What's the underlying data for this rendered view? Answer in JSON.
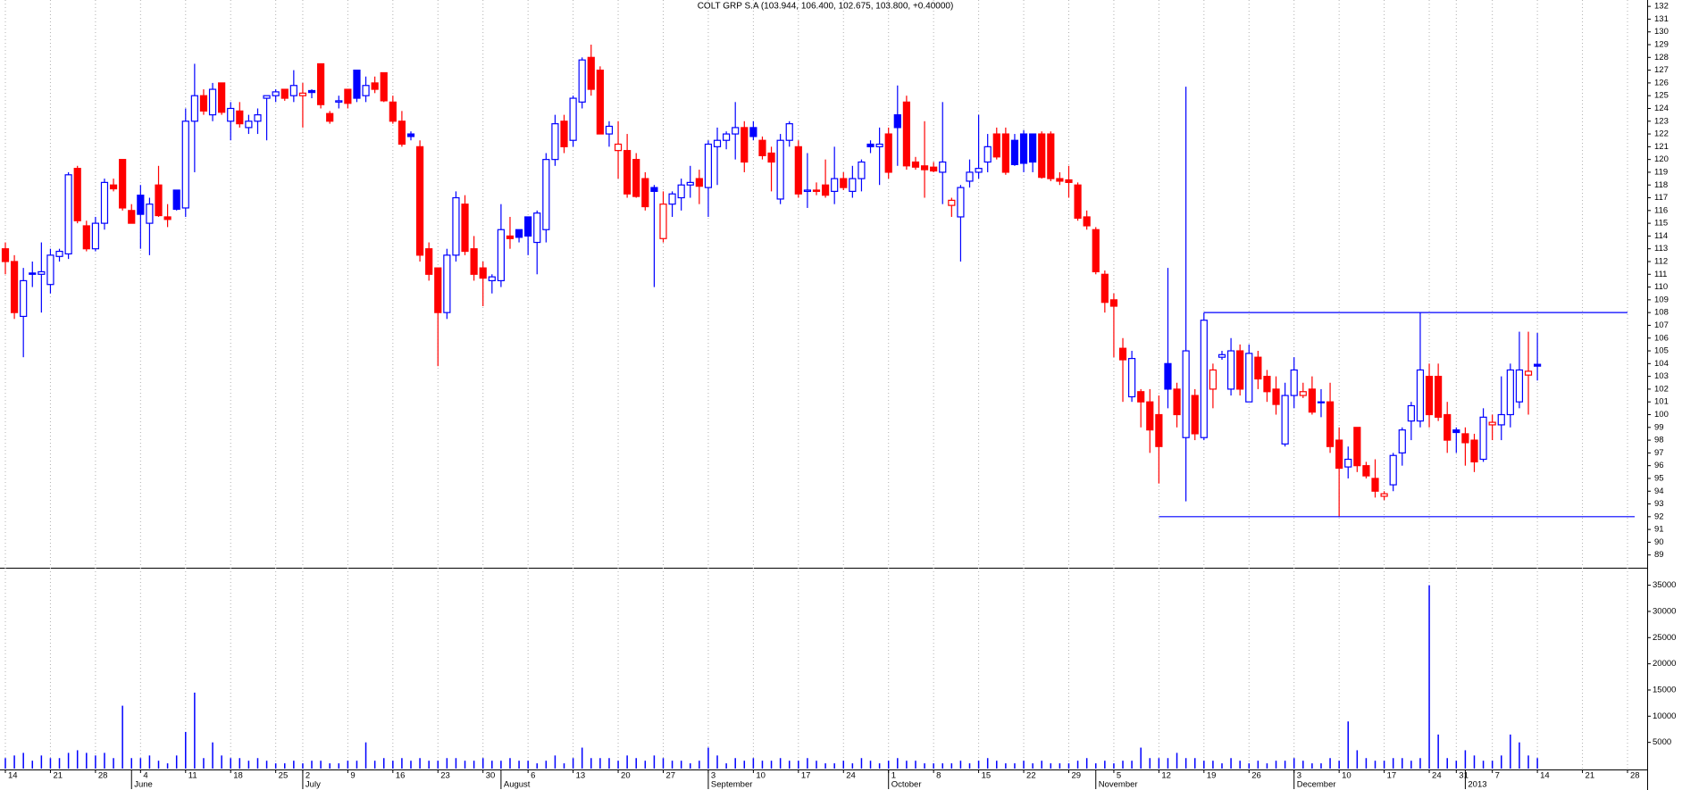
{
  "chart_data": {
    "type": "candlestick",
    "title": "COLT GRP S.A (103.944, 106.400, 102.675, 103.800, +0.40000)",
    "up_color": "#0000ff",
    "down_color": "#ff0000",
    "volume_color": "#0000ff",
    "hline_color": "#0000ff",
    "grid": true,
    "categories": [
      "14",
      null,
      null,
      null,
      null,
      "21",
      null,
      null,
      null,
      null,
      "28",
      null,
      null,
      null,
      null,
      "4",
      null,
      null,
      null,
      null,
      "11",
      null,
      null,
      null,
      null,
      "18",
      null,
      null,
      null,
      null,
      "25",
      null,
      null,
      "2",
      null,
      null,
      null,
      null,
      "9",
      null,
      null,
      null,
      null,
      "16",
      null,
      null,
      null,
      null,
      "23",
      null,
      null,
      null,
      null,
      "30",
      null,
      null,
      null,
      null,
      "6",
      null,
      null,
      null,
      null,
      "13",
      null,
      null,
      null,
      null,
      "20",
      null,
      null,
      null,
      null,
      "27",
      null,
      null,
      null,
      null,
      "3",
      null,
      null,
      null,
      null,
      "10",
      null,
      null,
      null,
      null,
      "17",
      null,
      null,
      null,
      null,
      "24",
      null,
      null,
      null,
      null,
      "1",
      null,
      null,
      null,
      null,
      "8",
      null,
      null,
      null,
      null,
      "15",
      null,
      null,
      null,
      null,
      "22",
      null,
      null,
      null,
      null,
      "29",
      null,
      null,
      null,
      null,
      "5",
      null,
      null,
      null,
      null,
      "12",
      null,
      null,
      null,
      null,
      "19",
      null,
      null,
      null,
      null,
      "26",
      null,
      null,
      null,
      null,
      "3",
      null,
      null,
      null,
      null,
      "10",
      null,
      null,
      null,
      null,
      "17",
      null,
      null,
      null,
      null,
      "24",
      null,
      null,
      "31",
      null,
      null,
      null,
      "7",
      null,
      null,
      null,
      null,
      "14",
      null,
      null,
      null,
      null,
      "21",
      null,
      null,
      null,
      null,
      "28"
    ],
    "months": [
      null,
      null,
      null,
      null,
      null,
      null,
      null,
      null,
      null,
      null,
      null,
      null,
      null,
      null,
      "June",
      null,
      null,
      null,
      null,
      null,
      null,
      null,
      null,
      null,
      null,
      null,
      null,
      null,
      null,
      null,
      null,
      null,
      null,
      "July",
      null,
      null,
      null,
      null,
      null,
      null,
      null,
      null,
      null,
      null,
      null,
      null,
      null,
      null,
      null,
      null,
      null,
      null,
      null,
      null,
      null,
      "August",
      null,
      null,
      null,
      null,
      null,
      null,
      null,
      null,
      null,
      null,
      null,
      null,
      null,
      null,
      null,
      null,
      null,
      null,
      null,
      null,
      null,
      null,
      "September",
      null,
      null,
      null,
      null,
      null,
      null,
      null,
      null,
      null,
      null,
      null,
      null,
      null,
      null,
      null,
      null,
      null,
      null,
      null,
      "October",
      null,
      null,
      null,
      null,
      null,
      null,
      null,
      null,
      null,
      null,
      null,
      null,
      null,
      null,
      null,
      null,
      null,
      null,
      null,
      null,
      null,
      null,
      "November",
      null,
      null,
      null,
      null,
      null,
      null,
      null,
      null,
      null,
      null,
      null,
      null,
      null,
      null,
      null,
      null,
      null,
      null,
      null,
      null,
      null,
      "December",
      null,
      null,
      null,
      null,
      null,
      null,
      null,
      null,
      null,
      null,
      null,
      null,
      null,
      null,
      null,
      null,
      null,
      null,
      "2013",
      null,
      null,
      null,
      null,
      null,
      null,
      null,
      null,
      null,
      null,
      null,
      null,
      null,
      null,
      null,
      null,
      null,
      null
    ],
    "open": [
      113,
      112,
      107.7,
      111.1,
      111,
      110.2,
      112.4,
      112.6,
      119.3,
      114.8,
      113,
      115,
      118,
      120,
      116,
      117.2,
      115,
      118,
      115.5,
      117.6,
      116.2,
      123,
      125,
      123.5,
      126,
      123,
      123.8,
      122.5,
      123,
      124.8,
      125,
      125.5,
      125,
      125,
      125.4,
      127.5,
      123.6,
      124.5,
      125.5,
      127,
      125,
      126,
      126.8,
      124.5,
      123,
      122,
      121,
      113,
      111.5,
      108,
      112.5,
      116.5,
      113,
      111.5,
      110.5,
      110.5,
      114,
      114.5,
      115.5,
      113.5,
      114.5,
      120,
      123,
      121.5,
      124.5,
      128,
      127,
      122,
      120.7,
      120.7,
      120,
      118.5,
      117.8,
      113.8,
      116.5,
      117,
      118,
      118.5,
      117.8,
      121,
      121.5,
      122,
      122.5,
      122.5,
      121.5,
      120.5,
      116.9,
      121.5,
      121,
      117.5,
      117.6,
      118,
      117.5,
      118.5,
      117.5,
      118.5,
      121.2,
      121,
      122,
      123.5,
      124.5,
      119.8,
      119.5,
      119.4,
      119,
      116.4,
      115.5,
      118.3,
      119,
      119.8,
      122,
      122,
      121.5,
      122,
      122,
      122,
      122,
      118.5,
      118.4,
      118,
      115.5,
      114.5,
      111,
      109,
      105.2,
      101.4,
      101.8,
      101,
      100,
      104,
      102,
      98.2,
      101.5,
      98.2,
      102,
      104.5,
      102,
      105,
      101,
      104.5,
      103,
      102,
      97.7,
      101.5,
      101.5,
      102,
      101,
      101,
      98,
      95.9,
      99,
      96,
      95,
      93.6,
      94.5,
      97,
      99.5,
      99.5,
      103,
      103,
      100,
      98.8,
      98.5,
      98,
      96.5,
      99.2,
      99.2,
      100,
      101,
      103.1,
      103.944,
      null,
      null,
      null,
      null,
      null,
      null,
      null,
      null,
      null,
      null
    ],
    "high": [
      113.5,
      112.5,
      111.5,
      112,
      113.5,
      113,
      113,
      119,
      119.5,
      115.2,
      115.5,
      118.5,
      118.5,
      120,
      116.5,
      118,
      117,
      119.5,
      116.5,
      117.6,
      124,
      127.5,
      125.5,
      126,
      126,
      124.5,
      124.5,
      123.5,
      124,
      125,
      125.5,
      125.5,
      127,
      126,
      125.5,
      127.5,
      123.8,
      125,
      125.5,
      127,
      126.5,
      126.5,
      126.8,
      125,
      123.8,
      122.2,
      121.5,
      113.5,
      111.5,
      113,
      117.5,
      117.2,
      114,
      112,
      111,
      116.5,
      115.5,
      114.5,
      115.5,
      116,
      120.5,
      123.5,
      123.5,
      125,
      128,
      129,
      127.3,
      123,
      123,
      122,
      120.5,
      119,
      118,
      117.5,
      117.5,
      118.5,
      119.5,
      119.2,
      121.5,
      122.5,
      122.2,
      124.5,
      123,
      123,
      121.8,
      121,
      122,
      123,
      121.5,
      120.5,
      118.2,
      120,
      121,
      119,
      119.5,
      120,
      121.5,
      122.5,
      122.5,
      125.8,
      125,
      120.2,
      123,
      119.8,
      124.5,
      117,
      118,
      120,
      123.5,
      122,
      122.5,
      122.5,
      122,
      122.3,
      122,
      122.2,
      122.2,
      119,
      119.5,
      118.2,
      116,
      114.7,
      111.3,
      109.5,
      106,
      105,
      102,
      102,
      101.5,
      111.5,
      102.5,
      125.7,
      102,
      108,
      104,
      105,
      106,
      105.5,
      105.5,
      105,
      103.5,
      103,
      102.5,
      104.5,
      102.5,
      103,
      102,
      102.5,
      99,
      97.5,
      99,
      96.3,
      96.5,
      94,
      97,
      99,
      101,
      108,
      104,
      104,
      101,
      99,
      99,
      98.5,
      100.5,
      100,
      103,
      104,
      106.5,
      106.5,
      106.4,
      null,
      null,
      null,
      null,
      null,
      null,
      null,
      null,
      null,
      null
    ],
    "low": [
      111,
      107.5,
      104.5,
      110,
      108,
      109.5,
      112,
      112.2,
      115,
      112.8,
      112.8,
      114.5,
      117.5,
      116,
      115,
      113,
      112.5,
      115.5,
      114.7,
      116,
      115.5,
      119,
      123.5,
      123,
      123.5,
      121.5,
      122.5,
      122,
      122,
      121.5,
      124.5,
      124.6,
      124.5,
      122.5,
      124.8,
      124,
      122.8,
      124,
      124,
      124.5,
      124.5,
      125.2,
      124.5,
      122.8,
      121,
      121.5,
      112,
      110.5,
      103.8,
      107.5,
      112,
      112.5,
      110.5,
      108.5,
      109.5,
      110,
      113,
      113.5,
      112.5,
      111,
      113.5,
      119.5,
      120.5,
      121,
      124,
      125,
      122,
      121,
      118.5,
      117,
      117,
      116,
      110,
      113.5,
      115.5,
      116,
      117,
      116.5,
      115.5,
      118,
      120.8,
      120,
      119,
      121.5,
      120,
      117.5,
      116.5,
      121,
      117,
      116.2,
      117.2,
      117,
      116.5,
      117.6,
      117,
      117.5,
      120.5,
      118,
      118.5,
      119.5,
      119.2,
      119.2,
      117,
      119,
      116.5,
      115.5,
      112,
      117.8,
      118.5,
      119,
      120,
      118.8,
      119.5,
      119,
      119,
      118.5,
      118.3,
      118,
      117,
      115.2,
      114.5,
      111,
      108,
      104.5,
      101,
      101,
      99,
      97,
      94.6,
      100.5,
      99,
      93.2,
      98,
      98,
      100.5,
      104.3,
      101.5,
      101.5,
      101,
      102,
      101,
      100,
      97.5,
      100.5,
      101.3,
      100,
      99.8,
      97,
      92,
      95,
      95.5,
      95,
      93.5,
      93.3,
      94,
      96,
      98,
      99,
      99,
      99.5,
      97,
      97,
      96,
      95.5,
      96.3,
      98,
      98,
      99,
      100.5,
      100,
      102.675,
      null,
      null,
      null,
      null,
      null,
      null,
      null,
      null,
      null,
      null
    ],
    "close": [
      112,
      108,
      110.5,
      111,
      111.2,
      112.5,
      112.8,
      118.8,
      115.2,
      113,
      115,
      118.2,
      117.7,
      116.2,
      115,
      115.7,
      116.5,
      115.6,
      115.3,
      116.1,
      123,
      125,
      123.8,
      125.5,
      123.7,
      124,
      122.8,
      123,
      123.5,
      125,
      125.3,
      124.8,
      125.8,
      125.2,
      125.25,
      124.3,
      123,
      124.6,
      124.4,
      124.8,
      125.8,
      125.5,
      124.6,
      123,
      121.2,
      121.8,
      112.5,
      111,
      108,
      112.5,
      117,
      112.8,
      111,
      110.7,
      110.8,
      114.5,
      113.8,
      113.9,
      114,
      115.8,
      120,
      122.8,
      121,
      124.8,
      127.8,
      125.5,
      122,
      122.6,
      121.2,
      117.3,
      117.1,
      116.3,
      117.5,
      116.5,
      117.3,
      118,
      118.2,
      117.9,
      121.2,
      121.5,
      122,
      122.5,
      119.8,
      121.8,
      120.3,
      119.8,
      121.5,
      122.8,
      117.3,
      117.6,
      117.5,
      117.2,
      118.5,
      117.8,
      118.5,
      119.8,
      121,
      121.2,
      119,
      122.5,
      119.5,
      119.4,
      119.2,
      119.1,
      119.8,
      116.8,
      117.8,
      119,
      119.3,
      121,
      120.2,
      119,
      119.6,
      119.7,
      119.8,
      118.6,
      118.5,
      118.3,
      118.2,
      115.4,
      114.8,
      111.2,
      108.8,
      108.5,
      104.3,
      104.4,
      101,
      98.8,
      97.5,
      102,
      100,
      105,
      98.5,
      107.4,
      103.5,
      104.7,
      105,
      102,
      104.8,
      102.8,
      101.8,
      100.8,
      101.5,
      103.5,
      101.8,
      100.2,
      101,
      97.5,
      95.8,
      96.5,
      96,
      95.2,
      94,
      93.8,
      96.8,
      98.8,
      100.7,
      103.5,
      100,
      99.8,
      98,
      98.6,
      97.8,
      96.3,
      99.8,
      99.4,
      100,
      103.5,
      103.5,
      103.4,
      103.8,
      null,
      null,
      null,
      null,
      null,
      null,
      null,
      null,
      null,
      null
    ],
    "volume": [
      2000,
      2500,
      3000,
      1500,
      2500,
      2000,
      2000,
      3000,
      3500,
      3000,
      2500,
      3000,
      2000,
      12000,
      2000,
      2000,
      2500,
      1500,
      1000,
      2500,
      7000,
      14500,
      2000,
      5000,
      2500,
      2000,
      2000,
      1500,
      2000,
      1500,
      1000,
      1000,
      1500,
      1000,
      1500,
      1500,
      1000,
      1000,
      1500,
      1500,
      5000,
      1500,
      2000,
      1500,
      2000,
      1500,
      2000,
      1500,
      1500,
      2000,
      2000,
      1500,
      1500,
      2000,
      1500,
      1500,
      2000,
      1500,
      1500,
      1000,
      1500,
      2500,
      1000,
      2000,
      4000,
      2000,
      2000,
      2000,
      1500,
      2500,
      2000,
      1500,
      2500,
      2000,
      1500,
      1500,
      1000,
      1500,
      4000,
      2500,
      1000,
      2000,
      1500,
      2000,
      1500,
      1500,
      2000,
      1500,
      1500,
      2000,
      1500,
      1000,
      1000,
      1500,
      1000,
      2000,
      1500,
      1000,
      1500,
      2000,
      1500,
      1500,
      1000,
      1000,
      1000,
      1000,
      1500,
      1000,
      1500,
      2000,
      1500,
      1000,
      1000,
      1500,
      1000,
      1500,
      1000,
      1000,
      1000,
      1500,
      2000,
      1000,
      1500,
      1000,
      1500,
      1500,
      4000,
      2000,
      2000,
      2000,
      3000,
      2000,
      2000,
      1500,
      1500,
      1000,
      2000,
      1500,
      1000,
      1500,
      1000,
      1500,
      1500,
      2000,
      1500,
      1000,
      1000,
      2000,
      1500,
      9000,
      3500,
      2000,
      1500,
      1500,
      2000,
      2000,
      1500,
      2000,
      35000,
      6500,
      2000,
      1500,
      3500,
      2500,
      1500,
      1500,
      2500,
      6500,
      5000,
      2500,
      2000,
      null,
      null,
      null,
      null,
      null,
      null,
      null,
      null,
      null,
      null
    ],
    "ylim": [
      88,
      132.5
    ],
    "yticks": [
      89,
      90,
      91,
      92,
      93,
      94,
      95,
      96,
      97,
      98,
      99,
      100,
      101,
      102,
      103,
      104,
      105,
      106,
      107,
      108,
      109,
      110,
      111,
      112,
      113,
      114,
      115,
      116,
      117,
      118,
      119,
      120,
      121,
      122,
      123,
      124,
      125,
      126,
      127,
      128,
      129,
      130,
      131,
      132
    ],
    "volume_ylim": [
      0,
      38000
    ],
    "volume_yticks": [
      5000,
      10000,
      15000,
      20000,
      25000,
      30000,
      35000
    ],
    "hlines": [
      108,
      92
    ]
  }
}
